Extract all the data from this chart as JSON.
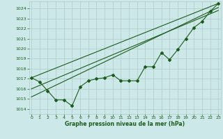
{
  "xlabel": "Graphe pression niveau de la mer (hPa)",
  "bg_color": "#cce8e8",
  "grid_color": "#b0c8c8",
  "line_color": "#1a5c1a",
  "ylim": [
    1013.5,
    1024.7
  ],
  "xlim": [
    -0.3,
    23.3
  ],
  "yticks": [
    1014,
    1015,
    1016,
    1017,
    1018,
    1019,
    1020,
    1021,
    1022,
    1023,
    1024
  ],
  "xticks": [
    0,
    1,
    2,
    3,
    4,
    5,
    6,
    7,
    8,
    9,
    10,
    11,
    12,
    13,
    14,
    15,
    16,
    17,
    18,
    19,
    20,
    21,
    22,
    23
  ],
  "data_series": [
    1017.1,
    1016.7,
    1015.8,
    1014.9,
    1014.9,
    1014.3,
    1016.2,
    1016.8,
    1017.0,
    1017.1,
    1017.4,
    1016.8,
    1016.8,
    1016.8,
    1018.2,
    1018.2,
    1019.6,
    1018.9,
    1019.9,
    1021.0,
    1022.1,
    1022.7,
    1023.7,
    1024.5
  ],
  "trend1_x": [
    0,
    23
  ],
  "trend1_y": [
    1017.1,
    1024.5
  ],
  "trend2_x": [
    0,
    23
  ],
  "trend2_y": [
    1015.2,
    1024.1
  ],
  "trend3_x": [
    0,
    23
  ],
  "trend3_y": [
    1016.0,
    1023.8
  ]
}
